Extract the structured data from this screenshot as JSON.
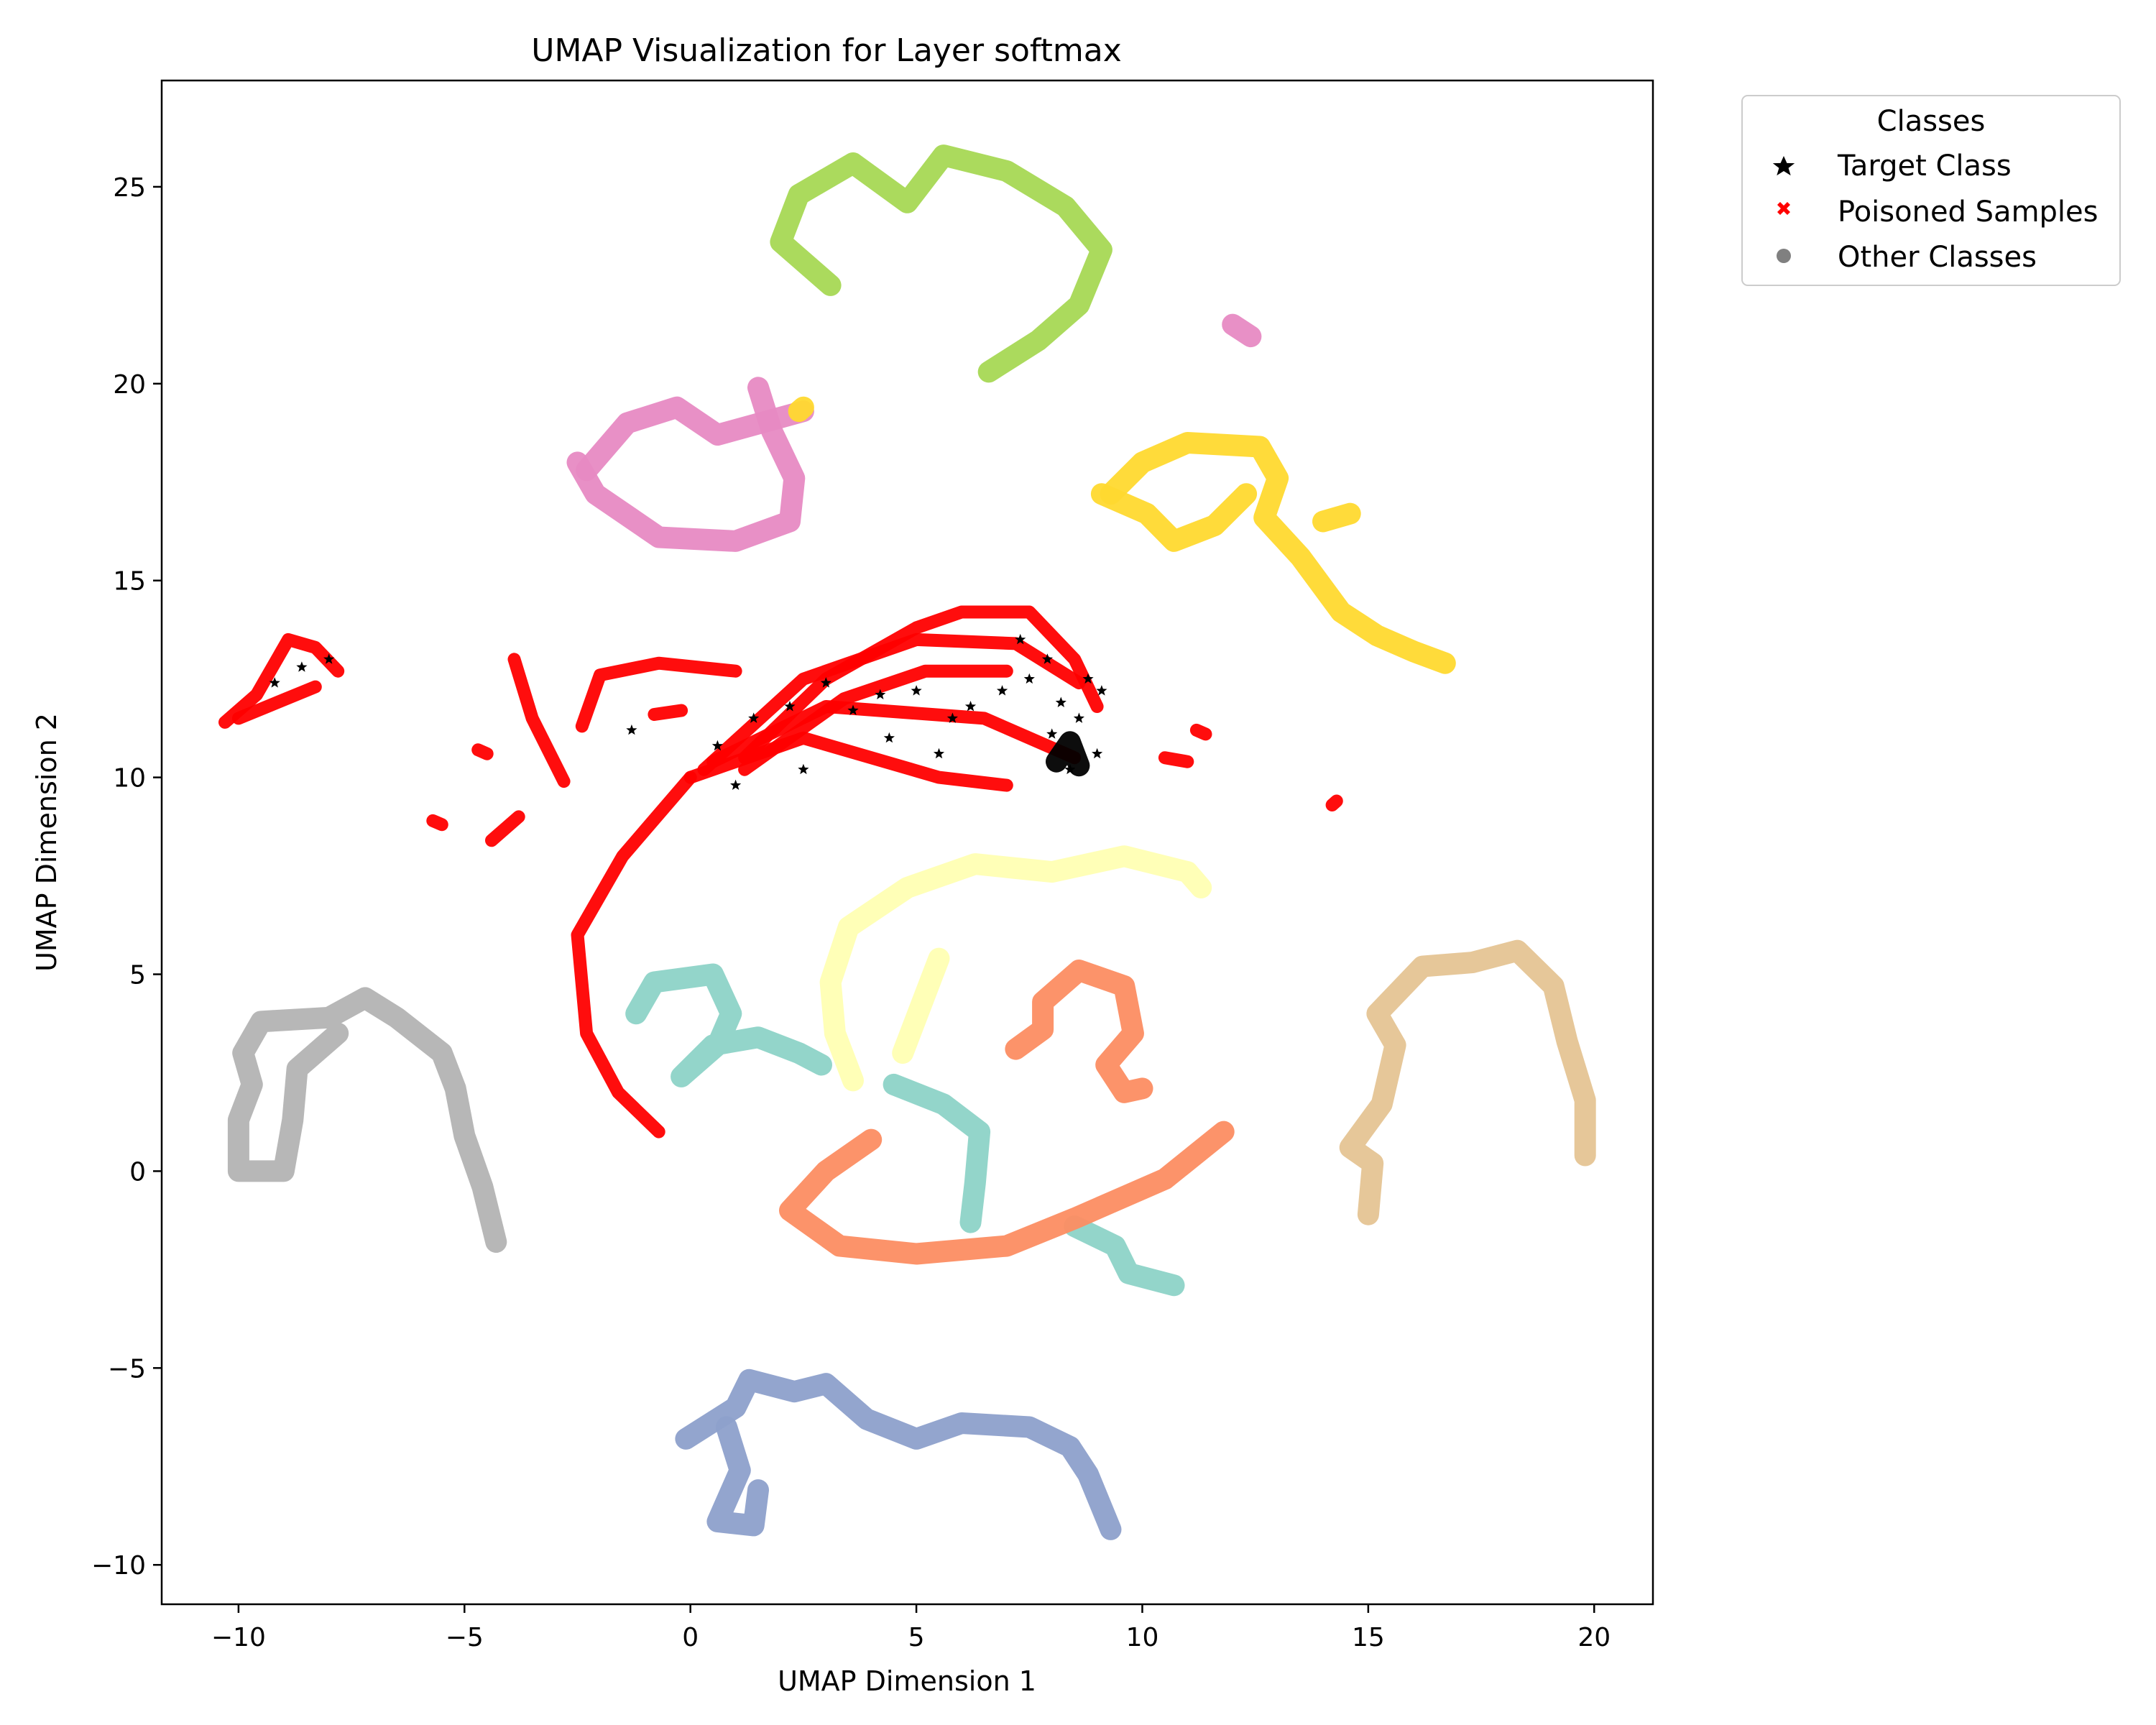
{
  "chart_data": {
    "type": "scatter",
    "title": "UMAP Visualization for Layer softmax",
    "xlabel": "UMAP Dimension 1",
    "ylabel": "UMAP Dimension 2",
    "xlim": [
      -11.7,
      21.3
    ],
    "ylim": [
      -11.0,
      27.7
    ],
    "xticks": [
      -10,
      -5,
      0,
      5,
      10,
      15,
      20
    ],
    "yticks": [
      -10,
      -5,
      0,
      5,
      10,
      15,
      20,
      25
    ],
    "grid": false,
    "legend": {
      "title": "Classes",
      "placement": "outside-top-right",
      "entries": [
        {
          "label": "Target Class",
          "marker": "star",
          "color": "#000000"
        },
        {
          "label": "Poisoned Samples",
          "marker": "x",
          "color": "#ff0000"
        },
        {
          "label": "Other Classes",
          "marker": "circle",
          "color": "#808080"
        }
      ]
    },
    "series": [
      {
        "color": "#a6d854",
        "paths": [
          [
            [
              3.1,
              22.5
            ],
            [
              2.0,
              23.6
            ],
            [
              2.4,
              24.8
            ],
            [
              3.6,
              25.6
            ],
            [
              4.8,
              24.6
            ],
            [
              5.6,
              25.8
            ],
            [
              7.0,
              25.4
            ],
            [
              8.3,
              24.5
            ],
            [
              9.1,
              23.4
            ],
            [
              8.6,
              22.0
            ],
            [
              7.7,
              21.1
            ],
            [
              6.6,
              20.3
            ]
          ]
        ]
      },
      {
        "color": "#e78ac3",
        "paths": [
          [
            [
              -2.5,
              18.0
            ],
            [
              -2.1,
              17.2
            ],
            [
              -0.7,
              16.1
            ],
            [
              1.0,
              16.0
            ],
            [
              2.2,
              16.5
            ],
            [
              2.3,
              17.6
            ],
            [
              1.8,
              18.8
            ],
            [
              1.5,
              19.9
            ]
          ],
          [
            [
              -2.3,
              17.8
            ],
            [
              -1.4,
              19.0
            ],
            [
              -0.3,
              19.4
            ],
            [
              0.6,
              18.7
            ],
            [
              2.5,
              19.3
            ]
          ]
        ]
      },
      {
        "color": "#e78ac3",
        "paths": [
          [
            [
              12.0,
              21.5
            ],
            [
              12.4,
              21.2
            ]
          ]
        ]
      },
      {
        "color": "#ffd92f",
        "paths": [
          [
            [
              9.3,
              17.2
            ],
            [
              10.0,
              18.0
            ],
            [
              11.0,
              18.5
            ],
            [
              12.6,
              18.4
            ],
            [
              13.0,
              17.6
            ],
            [
              12.7,
              16.6
            ],
            [
              13.5,
              15.6
            ],
            [
              14.4,
              14.2
            ],
            [
              15.2,
              13.6
            ],
            [
              16.0,
              13.2
            ],
            [
              16.7,
              12.9
            ]
          ],
          [
            [
              9.1,
              17.2
            ],
            [
              10.1,
              16.7
            ],
            [
              10.7,
              16.0
            ],
            [
              11.6,
              16.4
            ],
            [
              12.3,
              17.2
            ]
          ],
          [
            [
              14.0,
              16.5
            ],
            [
              14.6,
              16.7
            ]
          ]
        ]
      },
      {
        "color": "#ff0000",
        "paths": [
          [
            [
              -10.3,
              11.4
            ],
            [
              -9.6,
              12.1
            ],
            [
              -8.9,
              13.5
            ],
            [
              -8.3,
              13.3
            ],
            [
              -7.8,
              12.7
            ]
          ],
          [
            [
              -10.0,
              11.5
            ],
            [
              -8.3,
              12.3
            ]
          ]
        ]
      },
      {
        "color": "#ff0000",
        "paths": [
          [
            [
              -3.9,
              13.0
            ],
            [
              -3.5,
              11.5
            ],
            [
              -2.8,
              9.9
            ]
          ],
          [
            [
              -2.4,
              11.3
            ],
            [
              -2.0,
              12.6
            ],
            [
              -0.7,
              12.9
            ],
            [
              1.0,
              12.7
            ]
          ],
          [
            [
              -0.8,
              11.6
            ],
            [
              -0.2,
              11.7
            ]
          ],
          [
            [
              1.2,
              10.5
            ],
            [
              3.0,
              12.5
            ],
            [
              5.0,
              13.8
            ],
            [
              6.0,
              14.2
            ],
            [
              7.5,
              14.2
            ],
            [
              8.5,
              13.0
            ],
            [
              9.0,
              11.8
            ]
          ],
          [
            [
              1.2,
              10.2
            ],
            [
              3.4,
              12.0
            ],
            [
              5.2,
              12.7
            ],
            [
              7.0,
              12.7
            ]
          ],
          [
            [
              0.5,
              10.4
            ],
            [
              3.0,
              11.8
            ],
            [
              6.5,
              11.5
            ],
            [
              8.5,
              10.5
            ]
          ],
          [
            [
              0.0,
              10.0
            ],
            [
              2.5,
              11.0
            ],
            [
              5.5,
              10.0
            ],
            [
              7.0,
              9.8
            ]
          ],
          [
            [
              0.3,
              10.2
            ],
            [
              2.5,
              12.5
            ],
            [
              5.0,
              13.5
            ],
            [
              7.2,
              13.4
            ],
            [
              8.6,
              12.4
            ]
          ],
          [
            [
              0.0,
              10.0
            ],
            [
              -1.5,
              8.0
            ],
            [
              -2.5,
              6.0
            ],
            [
              -2.3,
              3.5
            ],
            [
              -1.6,
              2.0
            ],
            [
              -0.7,
              1.0
            ]
          ]
        ]
      },
      {
        "color": "#ff0000",
        "paths": [
          [
            [
              -5.7,
              8.9
            ],
            [
              -5.5,
              8.8
            ]
          ],
          [
            [
              -4.7,
              10.7
            ],
            [
              -4.5,
              10.6
            ]
          ],
          [
            [
              -4.4,
              8.4
            ],
            [
              -3.8,
              9.0
            ]
          ],
          [
            [
              10.5,
              10.5
            ],
            [
              11.0,
              10.4
            ]
          ],
          [
            [
              11.2,
              11.2
            ],
            [
              11.4,
              11.1
            ]
          ],
          [
            [
              14.2,
              9.3
            ],
            [
              14.3,
              9.4
            ]
          ]
        ]
      },
      {
        "color": "#000000",
        "paths": [
          [
            [
              8.1,
              10.4
            ],
            [
              8.4,
              10.9
            ],
            [
              8.6,
              10.3
            ]
          ]
        ]
      },
      {
        "color": "#ffffb3",
        "paths": [
          [
            [
              3.6,
              2.3
            ],
            [
              3.2,
              3.5
            ],
            [
              3.1,
              4.8
            ],
            [
              3.5,
              6.2
            ],
            [
              4.8,
              7.2
            ],
            [
              6.3,
              7.8
            ],
            [
              8.0,
              7.6
            ],
            [
              9.6,
              8.0
            ],
            [
              11.0,
              7.6
            ],
            [
              11.3,
              7.2
            ]
          ],
          [
            [
              4.7,
              3.0
            ],
            [
              5.5,
              5.4
            ]
          ]
        ]
      },
      {
        "color": "#8dd3c7",
        "paths": [
          [
            [
              -1.2,
              4.0
            ],
            [
              -0.8,
              4.8
            ],
            [
              0.5,
              5.0
            ],
            [
              0.9,
              4.0
            ],
            [
              0.6,
              3.2
            ],
            [
              -0.2,
              2.4
            ],
            [
              0.5,
              3.2
            ],
            [
              1.5,
              3.4
            ],
            [
              2.4,
              3.0
            ],
            [
              2.9,
              2.7
            ]
          ],
          [
            [
              4.5,
              2.2
            ],
            [
              5.6,
              1.7
            ],
            [
              6.4,
              1.0
            ],
            [
              6.3,
              -0.3
            ],
            [
              6.2,
              -1.3
            ]
          ],
          [
            [
              8.5,
              -1.4
            ],
            [
              9.4,
              -1.9
            ],
            [
              9.7,
              -2.6
            ],
            [
              10.7,
              -2.9
            ]
          ]
        ]
      },
      {
        "color": "#fc8d62",
        "paths": [
          [
            [
              7.2,
              3.1
            ],
            [
              7.8,
              3.6
            ],
            [
              7.8,
              4.3
            ],
            [
              8.6,
              5.1
            ],
            [
              9.6,
              4.7
            ],
            [
              9.8,
              3.5
            ],
            [
              9.2,
              2.7
            ],
            [
              9.6,
              2.0
            ],
            [
              10.0,
              2.1
            ]
          ],
          [
            [
              4.0,
              0.8
            ],
            [
              3.0,
              0.0
            ],
            [
              2.2,
              -1.0
            ],
            [
              3.3,
              -1.9
            ],
            [
              5.0,
              -2.1
            ],
            [
              7.0,
              -1.9
            ],
            [
              8.5,
              -1.2
            ],
            [
              10.5,
              -0.2
            ],
            [
              11.8,
              1.0
            ]
          ]
        ]
      },
      {
        "color": "#e5c494",
        "paths": [
          [
            [
              15.0,
              -1.1
            ],
            [
              15.1,
              0.2
            ],
            [
              14.6,
              0.6
            ],
            [
              15.3,
              1.7
            ],
            [
              15.6,
              3.2
            ],
            [
              15.2,
              4.0
            ],
            [
              16.2,
              5.2
            ],
            [
              17.3,
              5.3
            ],
            [
              18.3,
              5.6
            ],
            [
              19.1,
              4.7
            ],
            [
              19.4,
              3.3
            ],
            [
              19.8,
              1.8
            ],
            [
              19.8,
              0.4
            ]
          ]
        ]
      },
      {
        "color": "#b3b3b3",
        "paths": [
          [
            [
              -4.3,
              -1.8
            ],
            [
              -4.6,
              -0.4
            ],
            [
              -5.0,
              0.9
            ],
            [
              -5.2,
              2.1
            ],
            [
              -5.5,
              3.0
            ],
            [
              -6.5,
              3.9
            ],
            [
              -7.2,
              4.4
            ],
            [
              -8.0,
              3.9
            ],
            [
              -9.5,
              3.8
            ],
            [
              -9.9,
              3.0
            ],
            [
              -9.7,
              2.2
            ],
            [
              -10.0,
              1.3
            ],
            [
              -10.0,
              0.0
            ],
            [
              -9.0,
              0.0
            ],
            [
              -8.8,
              1.3
            ],
            [
              -8.7,
              2.6
            ],
            [
              -7.8,
              3.5
            ]
          ]
        ]
      },
      {
        "color": "#8da0cb",
        "paths": [
          [
            [
              -0.1,
              -6.8
            ],
            [
              1.0,
              -6.0
            ],
            [
              1.3,
              -5.3
            ],
            [
              2.3,
              -5.6
            ],
            [
              3.0,
              -5.4
            ],
            [
              3.9,
              -6.3
            ],
            [
              5.0,
              -6.8
            ],
            [
              6.0,
              -6.4
            ],
            [
              7.5,
              -6.5
            ],
            [
              8.4,
              -7.0
            ],
            [
              8.8,
              -7.7
            ],
            [
              9.3,
              -9.1
            ]
          ],
          [
            [
              0.8,
              -6.5
            ],
            [
              1.1,
              -7.6
            ],
            [
              0.6,
              -8.9
            ],
            [
              1.4,
              -9.0
            ],
            [
              1.5,
              -8.1
            ]
          ]
        ]
      },
      {
        "color": "#ffd92f",
        "paths": [
          [
            [
              2.4,
              19.3
            ],
            [
              2.5,
              19.4
            ]
          ]
        ]
      }
    ],
    "target_class_stars": [
      [
        -9.2,
        12.4
      ],
      [
        -8.6,
        12.8
      ],
      [
        -8.0,
        13.0
      ],
      [
        1.4,
        11.5
      ],
      [
        2.2,
        11.8
      ],
      [
        3.0,
        12.4
      ],
      [
        3.6,
        11.7
      ],
      [
        4.2,
        12.1
      ],
      [
        5.0,
        12.2
      ],
      [
        5.8,
        11.5
      ],
      [
        6.2,
        11.8
      ],
      [
        7.3,
        13.5
      ],
      [
        7.9,
        13.0
      ],
      [
        8.2,
        11.9
      ],
      [
        8.8,
        12.5
      ],
      [
        9.1,
        12.2
      ],
      [
        8.6,
        11.5
      ],
      [
        8.0,
        11.1
      ],
      [
        8.4,
        10.2
      ],
      [
        9.0,
        10.6
      ],
      [
        4.4,
        11.0
      ],
      [
        5.5,
        10.6
      ],
      [
        2.5,
        10.2
      ],
      [
        1.0,
        9.8
      ],
      [
        0.6,
        10.8
      ],
      [
        -1.3,
        11.2
      ],
      [
        6.9,
        12.2
      ],
      [
        7.5,
        12.5
      ]
    ]
  }
}
